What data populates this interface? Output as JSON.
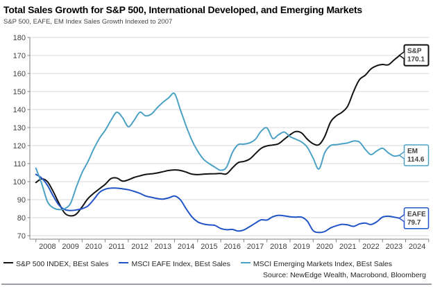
{
  "header": {
    "title": "Total Sales Growth for S&P 500, International Developed, and Emerging Markets",
    "subtitle": "S&P 500, EAFE, EM Index Sales Growth Indexed to 2007"
  },
  "source": "Source: NewEdge Wealth, Macrobond, Bloomberg",
  "chart_data": {
    "type": "line",
    "title": "Total Sales Growth for S&P 500, International Developed, and Emerging Markets",
    "subtitle": "S&P 500, EAFE, EM Index Sales Growth Indexed to 2007",
    "grid": "horizontal",
    "legend_position": "bottom",
    "x_axis": {
      "year_labels": [
        2008,
        2009,
        2010,
        2011,
        2012,
        2013,
        2014,
        2015,
        2016,
        2017,
        2018,
        2019,
        2020,
        2021,
        2022,
        2023,
        2024
      ]
    },
    "y_axis": {
      "min": 70,
      "max": 180,
      "ticks": [
        70,
        80,
        90,
        100,
        110,
        120,
        130,
        140,
        150,
        160,
        170,
        180
      ]
    },
    "x_start": 2008.0,
    "x_step": 0.25,
    "series": [
      {
        "key": "sp500",
        "name": "S&P 500 INDEX, BEst Sales",
        "color": "#111111",
        "callout": {
          "label": "S&P",
          "value": "170.1"
        },
        "values": [
          99.5,
          101.5,
          100,
          94.5,
          88,
          82.5,
          81,
          82,
          86,
          90.5,
          93.5,
          96,
          98.5,
          101.7,
          102,
          100.3,
          101,
          102.3,
          103.2,
          104,
          104.3,
          104.8,
          105.5,
          106.2,
          106.5,
          106.2,
          105.3,
          104.2,
          103.9,
          104.1,
          104.3,
          104.4,
          104.5,
          104.3,
          107.5,
          110.5,
          111.2,
          112.5,
          115.5,
          118.5,
          119.8,
          120.3,
          121,
          123.5,
          126,
          127.8,
          127,
          123.5,
          121,
          120.5,
          125,
          133,
          136.5,
          138.5,
          142,
          150,
          156.5,
          159,
          162.5,
          164.3,
          165,
          164.8,
          167.5,
          170.1
        ]
      },
      {
        "key": "eafe",
        "name": "MSCI EAFE Index, BEst Sales",
        "color": "#2053c6",
        "callout": {
          "label": "EAFE",
          "value": "79.7"
        },
        "values": [
          104,
          102,
          98,
          92,
          87,
          84.5,
          84,
          84.3,
          85,
          86.5,
          90,
          94,
          95.8,
          96.4,
          96.4,
          96,
          95.5,
          94.6,
          93.5,
          92,
          91.3,
          90.6,
          90.3,
          91,
          92,
          90,
          85,
          80.5,
          77.7,
          76.5,
          76,
          75.7,
          74,
          73.3,
          73.5,
          72.6,
          73.2,
          75,
          77,
          78.8,
          78.7,
          80.5,
          81.3,
          81,
          80.5,
          80.3,
          80.3,
          78,
          72.8,
          71.8,
          72.3,
          74.3,
          75.5,
          76.3,
          76,
          75.2,
          76.5,
          77,
          76.2,
          77.7,
          80.3,
          80.8,
          80.3,
          79.7
        ]
      },
      {
        "key": "em",
        "name": "MSCI Emerging Markets Index, BEst Sales",
        "color": "#4ba1c3",
        "callout": {
          "label": "EM",
          "value": "114.6"
        },
        "values": [
          107.5,
          99,
          89,
          85.5,
          84.5,
          85,
          88,
          97,
          105,
          111,
          118,
          124,
          128.5,
          134,
          138.5,
          135.5,
          130.5,
          134,
          138.5,
          136.5,
          137.5,
          141,
          144,
          146.5,
          148.8,
          140,
          131,
          123,
          117,
          112.5,
          110,
          108,
          106.3,
          108,
          116,
          120.5,
          120.8,
          121.5,
          123.5,
          128,
          129.8,
          124,
          126,
          127.5,
          125,
          123.5,
          122,
          119,
          113,
          107,
          116,
          120,
          120.5,
          121,
          121.5,
          122.5,
          122,
          118,
          115,
          117,
          118.5,
          116,
          114.2,
          114.6
        ]
      }
    ]
  },
  "legend": {
    "items": [
      {
        "label": "S&P 500 INDEX, BEst Sales"
      },
      {
        "label": "MSCI EAFE Index, BEst Sales"
      },
      {
        "label": "MSCI Emerging Markets Index, BEst Sales"
      }
    ]
  }
}
